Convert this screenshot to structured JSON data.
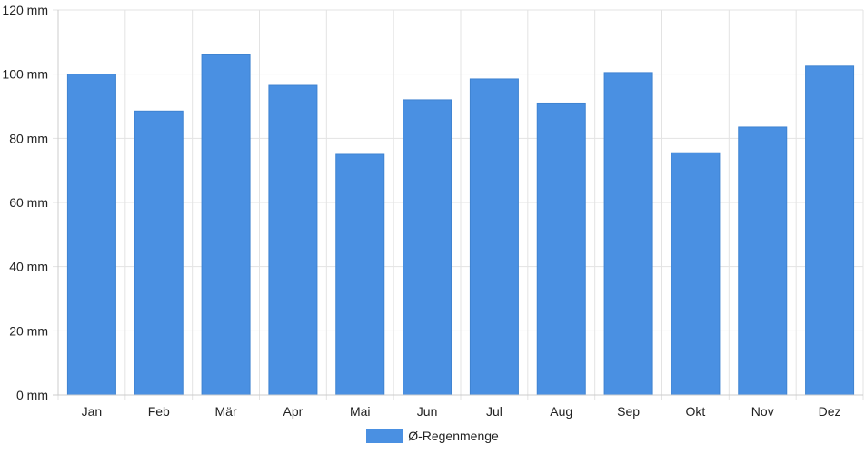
{
  "chart_data": {
    "type": "bar",
    "title": "",
    "xlabel": "",
    "ylabel": "",
    "y_unit": "mm",
    "ylim": [
      0,
      120
    ],
    "y_ticks": [
      0,
      20,
      40,
      60,
      80,
      100,
      120
    ],
    "y_tick_labels": [
      "0 mm",
      "20 mm",
      "40 mm",
      "60 mm",
      "80 mm",
      "100 mm",
      "120 mm"
    ],
    "categories": [
      "Jan",
      "Feb",
      "Mär",
      "Apr",
      "Mai",
      "Jun",
      "Jul",
      "Aug",
      "Sep",
      "Okt",
      "Nov",
      "Dez"
    ],
    "series": [
      {
        "name": "Ø-Regenmenge",
        "color": "#4a90e2",
        "values": [
          100,
          88.5,
          106,
          96.5,
          75,
          92,
          98.5,
          91,
          100.5,
          75.5,
          83.5,
          102.5
        ]
      }
    ],
    "grid": true,
    "legend_position": "bottom"
  }
}
